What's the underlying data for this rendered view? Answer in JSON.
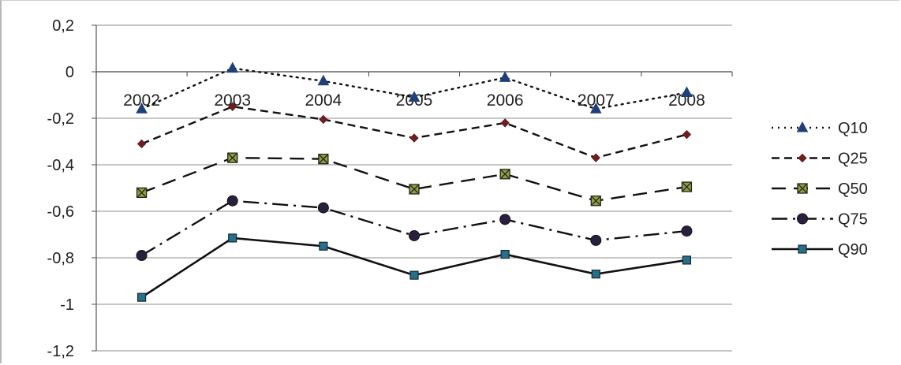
{
  "chart_data": {
    "type": "line",
    "categories": [
      "2002",
      "2003",
      "2004",
      "2005",
      "2006",
      "2007",
      "2008"
    ],
    "ylim": [
      -1.2,
      0.2
    ],
    "yticks": [
      "0,2",
      "0",
      "-0,2",
      "-0,4",
      "-0,6",
      "-0,8",
      "-1",
      "-1,2"
    ],
    "grid": true,
    "legend_position": "right",
    "series": [
      {
        "name": "Q10",
        "values": [
          -0.16,
          0.015,
          -0.04,
          -0.11,
          -0.025,
          -0.16,
          -0.09
        ],
        "marker": "triangle",
        "dash": "dotted",
        "marker_color": "#1f3f7a"
      },
      {
        "name": "Q25",
        "values": [
          -0.31,
          -0.15,
          -0.205,
          -0.285,
          -0.22,
          -0.37,
          -0.27
        ],
        "marker": "diamond",
        "dash": "dashed",
        "marker_color": "#6b1f1f"
      },
      {
        "name": "Q50",
        "values": [
          -0.52,
          -0.37,
          -0.375,
          -0.505,
          -0.44,
          -0.555,
          -0.495
        ],
        "marker": "square-x",
        "dash": "long-dash",
        "marker_color": "#5a6a1a"
      },
      {
        "name": "Q75",
        "values": [
          -0.79,
          -0.555,
          -0.585,
          -0.705,
          -0.635,
          -0.725,
          -0.685
        ],
        "marker": "circle",
        "dash": "dash-dot",
        "marker_color": "#2a1f3f"
      },
      {
        "name": "Q90",
        "values": [
          -0.97,
          -0.715,
          -0.75,
          -0.875,
          -0.785,
          -0.87,
          -0.81
        ],
        "marker": "square",
        "dash": "solid",
        "marker_color": "#2a6f8a"
      }
    ]
  }
}
